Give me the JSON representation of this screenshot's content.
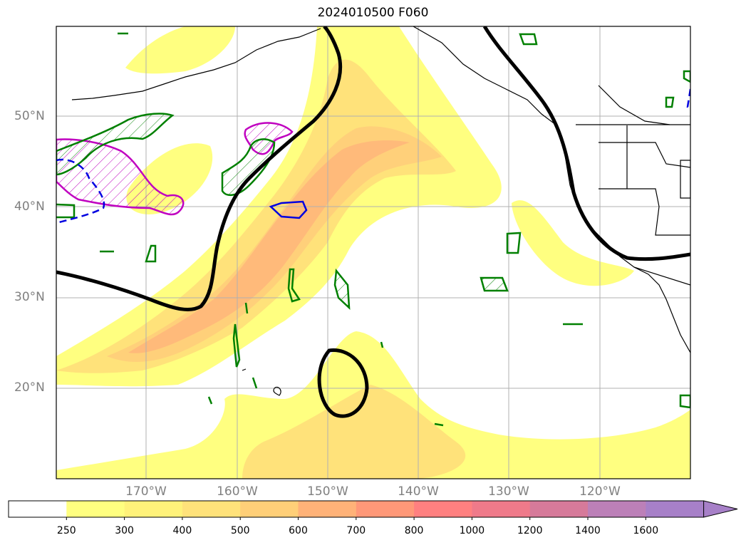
{
  "title": "2024010500 F060",
  "map": {
    "lat_labels": [
      "50°N",
      "40°N",
      "30°N",
      "20°N"
    ],
    "lon_labels": [
      "170°W",
      "160°W",
      "150°W",
      "140°W",
      "130°W",
      "120°W"
    ]
  },
  "colorbar": {
    "ticks": [
      "250",
      "300",
      "400",
      "500",
      "600",
      "700",
      "800",
      "1000",
      "1200",
      "1400",
      "1600"
    ],
    "colors": [
      "#ffffff",
      "#ffff80",
      "#fff27a",
      "#ffe27a",
      "#ffcf78",
      "#ffb278",
      "#ff9878",
      "#ff8080",
      "#ef7a8a",
      "#d67a9a",
      "#bc80b8",
      "#a780c8"
    ],
    "extend": "max"
  },
  "layers": {
    "ivt_fill_colors": [
      "#ffff80",
      "#ffe880",
      "#ffd27a",
      "#ffba7a"
    ],
    "height_contour_color": "#000000",
    "green_contour_color": "#008000",
    "magenta_contour_color": "#c000c0",
    "blue_contour_color": "#0000e0"
  }
}
